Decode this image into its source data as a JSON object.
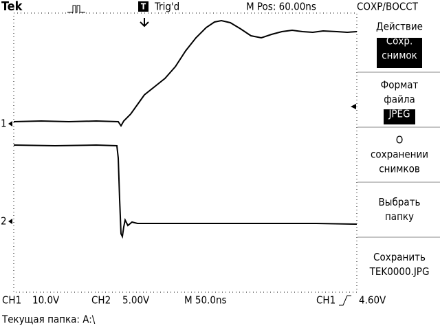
{
  "header": {
    "brand": "Tek",
    "trigger_marker": "T",
    "trigger_status": "Trig'd",
    "position": "M Pos: 60.00ns",
    "menu_title": "СОХР/ВОССТ"
  },
  "markers": {
    "ch1": "1",
    "ch2": "2"
  },
  "menu": [
    {
      "label": [
        "Действие"
      ],
      "value": [
        "Сохр.",
        "снимок"
      ]
    },
    {
      "label": [
        "Формат",
        "файла"
      ],
      "value": [
        "JPEG"
      ]
    },
    {
      "label": [
        "О",
        "сохранении",
        "снимков"
      ]
    },
    {
      "label": [
        "Выбрать",
        "папку"
      ]
    },
    {
      "label": [
        "Сохранить",
        "TEK0000.JPG"
      ]
    }
  ],
  "status": {
    "ch1": "CH1",
    "ch1_scale": "10.0V",
    "ch2": "CH2",
    "ch2_scale": "5.00V",
    "time": "M 50.0ns",
    "trigger_source": "CH1",
    "trigger_level": "4.60V"
  },
  "footer": "Текущая папка: A:\\"
}
